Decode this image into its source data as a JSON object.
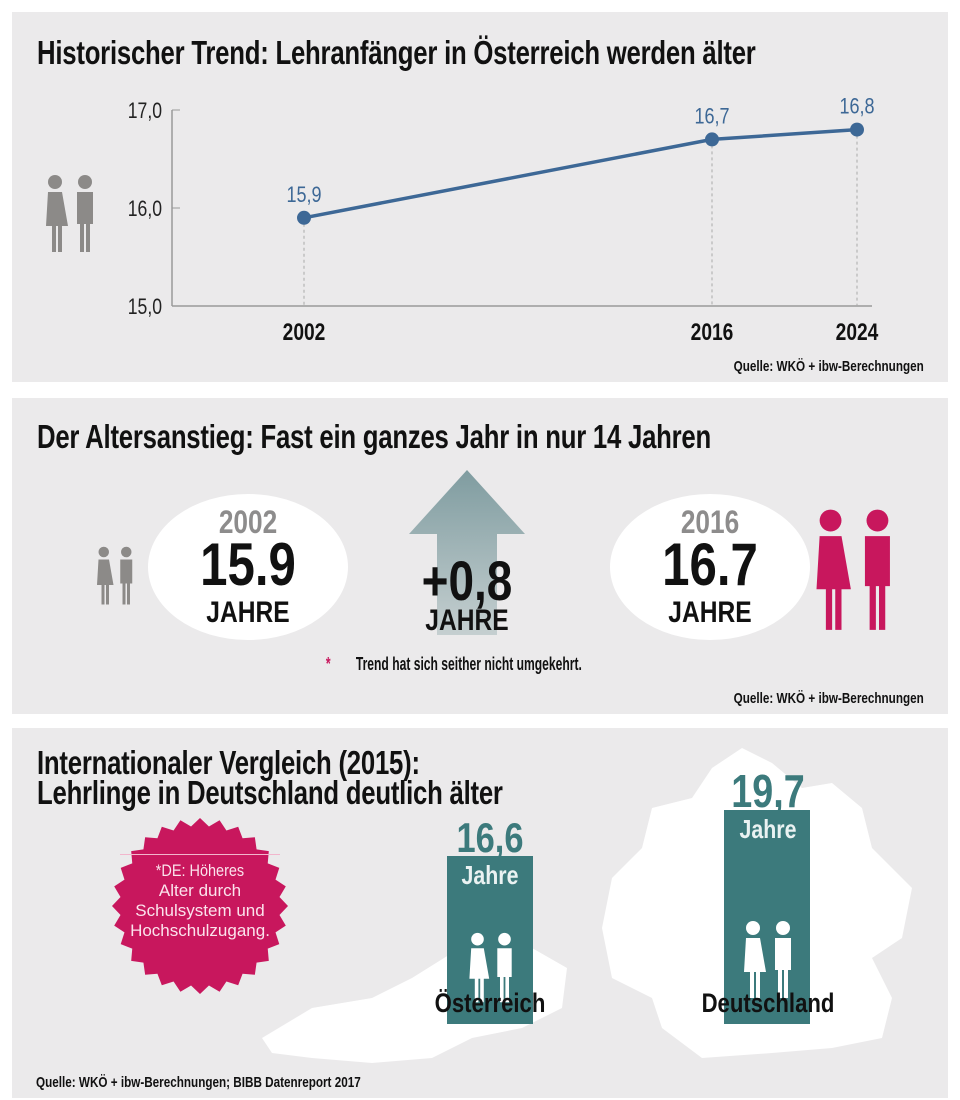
{
  "panel1": {
    "title": "Historischer Trend: Lehranfänger in Österreich werden älter",
    "source": "Quelle: WKÖ + ibw-Berechnungen",
    "icon": "people-icon"
  },
  "chart_data": {
    "type": "line",
    "title": "Historischer Trend: Lehranfänger in Österreich werden älter",
    "x": [
      2002,
      2016,
      2024
    ],
    "x_tick_labels": [
      "2002",
      "2016",
      "2024"
    ],
    "values": [
      15.9,
      16.7,
      16.8
    ],
    "data_labels": [
      "15,9",
      "16,7",
      "16,8"
    ],
    "y_tick_labels": [
      "17,0",
      "16,0",
      "15,0"
    ],
    "y_ticks": [
      17,
      16,
      15
    ],
    "ylim": [
      15,
      17
    ],
    "xlim": [
      1995,
      2025
    ],
    "xlabel": "",
    "ylabel": "",
    "grid": false,
    "color": "#3d6896"
  },
  "panel2": {
    "title": "Der Altersanstieg: Fast ein ganzes Jahr in nur 14 Jahren",
    "left": {
      "year": "2002",
      "value": "15.9",
      "unit": "JAHRE"
    },
    "middle": {
      "value": "+0,8",
      "unit": "JAHRE"
    },
    "right": {
      "year": "2016",
      "value": "16.7",
      "unit": "JAHRE"
    },
    "footnote_star": "*",
    "footnote": "Trend hat sich seither nicht umgekehrt.",
    "source": "Quelle: WKÖ + ibw-Berechnungen",
    "colors": {
      "accent": "#c8175d",
      "arrow": "#8fa6a9"
    }
  },
  "panel3": {
    "title_line1": "Internationaler Vergleich (2015):",
    "title_line2": "Lehrlinge in Deutschland deutlich älter",
    "badge": [
      "*DE: Höheres",
      "Alter durch",
      "Schulsystem und",
      "Hochschulzugang."
    ],
    "austria": {
      "value": "16,6",
      "unit": "Jahre",
      "label": "Österreich",
      "number": 16.6
    },
    "germany": {
      "value": "19,7",
      "unit": "Jahre",
      "label": "Deutschland",
      "number": 19.7
    },
    "source": "Quelle: WKÖ + ibw-Berechnungen; BIBB Datenreport 2017",
    "colors": {
      "bar": "#3c7a7c",
      "value": "#3c7a7c",
      "badge": "#c8175d"
    }
  }
}
